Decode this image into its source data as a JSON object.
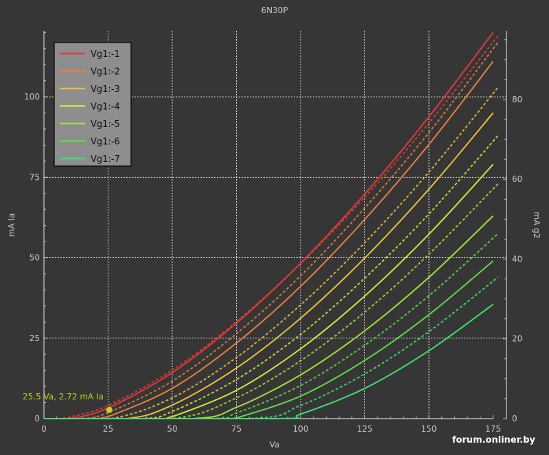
{
  "chart_data": {
    "type": "line",
    "title": "6N30P",
    "xlabel": "Va",
    "ylabel": "mA Ia",
    "y2label": "mA g2",
    "xlim": [
      0,
      180
    ],
    "ylim": [
      0,
      120.5
    ],
    "y2lim": [
      0,
      97.2
    ],
    "xticks": [
      0,
      25,
      50,
      75,
      100,
      125,
      150,
      175
    ],
    "yticks": [
      0,
      25,
      50,
      75,
      100
    ],
    "y2ticks": [
      0,
      20,
      40,
      60,
      80
    ],
    "grid": true,
    "legend_position": "top-left",
    "annotation": {
      "text": "25.5 Va, 2.72 mA Ia",
      "x": 25.5,
      "y": 2.72,
      "color": "#c8c820"
    },
    "series": [
      {
        "name": "Vg1:-1",
        "color": "#e23a3a",
        "axis": "left",
        "x": [
          0,
          10,
          25,
          50,
          75,
          100,
          125,
          150,
          175
        ],
        "y": [
          0,
          0,
          3.3,
          14.3,
          29.7,
          48.3,
          69.8,
          93.8,
          120
        ]
      },
      {
        "name": "Vg1:-2",
        "color": "#e8803a",
        "axis": "left",
        "x": [
          0,
          20,
          25,
          50,
          75,
          100,
          125,
          150,
          175
        ],
        "y": [
          0,
          0,
          0.6,
          9.4,
          23.5,
          41.1,
          61.9,
          85.2,
          111
        ]
      },
      {
        "name": "Vg1:-3",
        "color": "#e8bf3e",
        "axis": "left",
        "x": [
          0,
          32,
          50,
          75,
          100,
          125,
          150,
          175
        ],
        "y": [
          0,
          0,
          4.2,
          15.7,
          31.2,
          49.9,
          71.3,
          95
        ]
      },
      {
        "name": "Vg1:-4",
        "color": "#d6e23e",
        "axis": "left",
        "x": [
          0,
          45,
          50,
          75,
          100,
          125,
          150,
          175
        ],
        "y": [
          0,
          0,
          0.6,
          8.8,
          21.7,
          38.1,
          57.3,
          79
        ]
      },
      {
        "name": "Vg1:-5",
        "color": "#a2e03c",
        "axis": "left",
        "x": [
          0,
          58,
          75,
          100,
          125,
          150,
          175
        ],
        "y": [
          0,
          0,
          3.5,
          13.6,
          27.3,
          43.9,
          63
        ]
      },
      {
        "name": "Vg1:-6",
        "color": "#5ed84a",
        "axis": "left",
        "x": [
          0,
          72,
          75,
          100,
          125,
          150,
          175
        ],
        "y": [
          0,
          0,
          0.2,
          7.0,
          18.1,
          32.3,
          49
        ]
      },
      {
        "name": "Vg1:-7",
        "color": "#3fe070",
        "axis": "left",
        "x": [
          0,
          90,
          100,
          125,
          150,
          175
        ],
        "y": [
          0,
          0,
          1.4,
          9.4,
          21.1,
          35.5
        ]
      }
    ],
    "dashed_series": [
      {
        "name": "Vg1:-1 g2",
        "color": "#e23a3a",
        "axis": "right",
        "x": [
          0,
          7,
          25,
          50,
          75,
          100,
          125,
          150,
          177
        ],
        "y": [
          0,
          0,
          3.3,
          12.2,
          24.3,
          38.9,
          55.5,
          74.1,
          96.0
        ]
      },
      {
        "name": "Vg1:-2 g2",
        "color": "#e8803a",
        "axis": "right",
        "x": [
          0,
          15,
          25,
          50,
          75,
          100,
          125,
          150,
          177
        ],
        "y": [
          0,
          0,
          1.5,
          9.4,
          21.3,
          35.8,
          52.8,
          71.7,
          94.4
        ]
      },
      {
        "name": "Vg1:-3 g2",
        "color": "#e8bf3e",
        "axis": "right",
        "x": [
          0,
          26,
          50,
          75,
          100,
          125,
          150,
          177
        ],
        "y": [
          0,
          0,
          5.2,
          15.3,
          28.5,
          44.1,
          61.8,
          83.1
        ]
      },
      {
        "name": "Vg1:-4 g2",
        "color": "#d6e23e",
        "axis": "right",
        "x": [
          0,
          38,
          50,
          75,
          100,
          125,
          150,
          177
        ],
        "y": [
          0,
          0,
          1.8,
          9.8,
          21.1,
          35.2,
          51.3,
          71.0
        ]
      },
      {
        "name": "Vg1:-5 g2",
        "color": "#a2e03c",
        "axis": "right",
        "x": [
          0,
          50,
          75,
          100,
          125,
          150,
          177
        ],
        "y": [
          0,
          0,
          5.2,
          14.5,
          26.7,
          41.2,
          58.9
        ]
      },
      {
        "name": "Vg1:-6 g2",
        "color": "#5ed84a",
        "axis": "right",
        "x": [
          0,
          64,
          75,
          100,
          125,
          150,
          177
        ],
        "y": [
          0,
          0,
          1.4,
          8.3,
          18.4,
          30.8,
          46.4
        ]
      },
      {
        "name": "Vg1:-7 g2",
        "color": "#3fe070",
        "axis": "right",
        "x": [
          0,
          80,
          100,
          125,
          150,
          177
        ],
        "y": [
          0,
          0,
          3.3,
          11.2,
          21.8,
          35.5
        ]
      }
    ]
  },
  "watermark": "forum.onliner.by"
}
